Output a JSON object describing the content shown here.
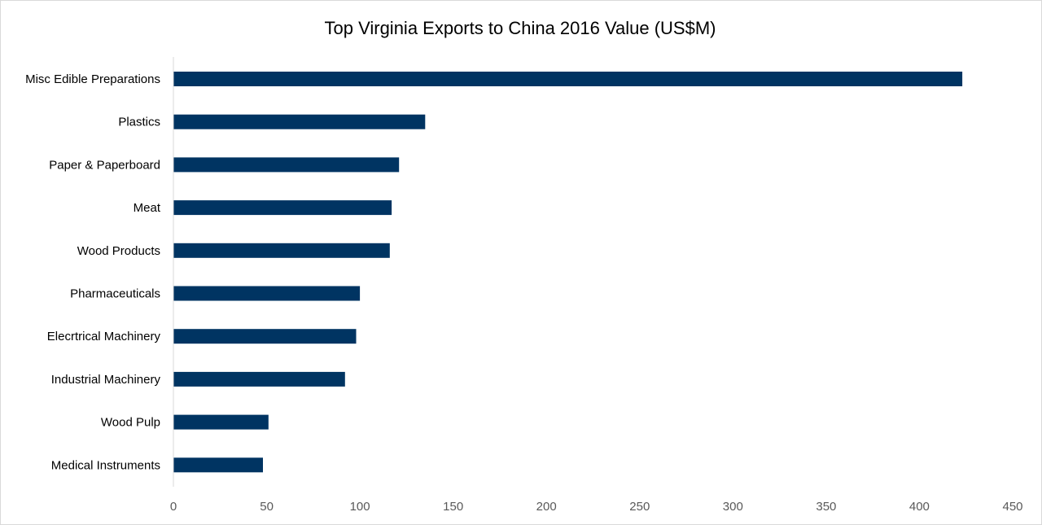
{
  "chart_data": {
    "type": "bar",
    "orientation": "horizontal",
    "title": "Top Virginia Exports to China 2016 Value (US$M)",
    "xlabel": "",
    "ylabel": "",
    "categories": [
      "Misc Edible Preparations",
      "Plastics",
      "Paper & Paperboard",
      "Meat",
      "Wood Products",
      "Pharmaceuticals",
      "Elecrtrical Machinery",
      "Industrial Machinery",
      "Wood Pulp",
      "Medical Instruments"
    ],
    "values": [
      423,
      135,
      121,
      117,
      116,
      100,
      98,
      92,
      51,
      48
    ],
    "xlim": [
      0,
      450
    ],
    "xticks": [
      0,
      50,
      100,
      150,
      200,
      250,
      300,
      350,
      400,
      450
    ],
    "bar_color": "#003462",
    "grid": false,
    "legend": "none"
  }
}
